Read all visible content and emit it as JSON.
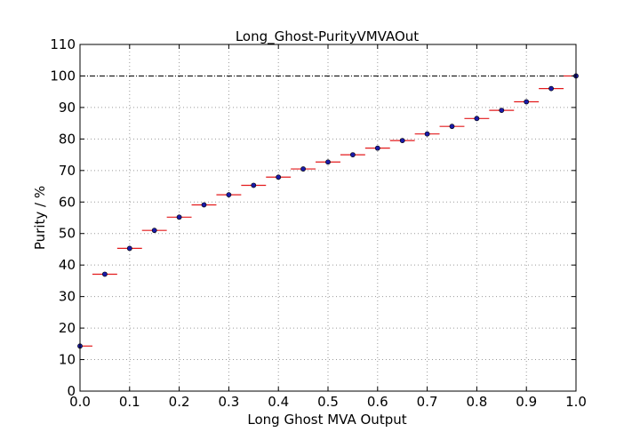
{
  "chart_data": {
    "type": "scatter",
    "title": "Long_Ghost-PurityVMVAOut",
    "xlabel": "Long Ghost MVA Output",
    "ylabel": "Purity / %",
    "xlim": [
      0.0,
      1.0
    ],
    "ylim": [
      0,
      110
    ],
    "xticks": [
      "0.0",
      "0.1",
      "0.2",
      "0.3",
      "0.4",
      "0.5",
      "0.6",
      "0.7",
      "0.8",
      "0.9",
      "1.0"
    ],
    "yticks": [
      "0",
      "10",
      "20",
      "30",
      "40",
      "50",
      "60",
      "70",
      "80",
      "90",
      "100",
      "110"
    ],
    "grid": true,
    "reference_line": 100,
    "x_error": 0.025,
    "colors": {
      "marker": "#1a1aa8",
      "error_bar": "#e31a1c",
      "reference": "#000000",
      "grid": "#9a9a9a"
    },
    "x": [
      0.0,
      0.05,
      0.1,
      0.15,
      0.2,
      0.25,
      0.3,
      0.35,
      0.4,
      0.45,
      0.5,
      0.55,
      0.6,
      0.65,
      0.7,
      0.75,
      0.8,
      0.85,
      0.9,
      0.95,
      1.0
    ],
    "y": [
      14.3,
      37.1,
      45.3,
      51.0,
      55.2,
      59.1,
      62.3,
      65.3,
      67.9,
      70.5,
      72.7,
      75.0,
      77.1,
      79.5,
      81.6,
      84.0,
      86.5,
      89.1,
      91.8,
      96.0,
      100.0
    ]
  }
}
